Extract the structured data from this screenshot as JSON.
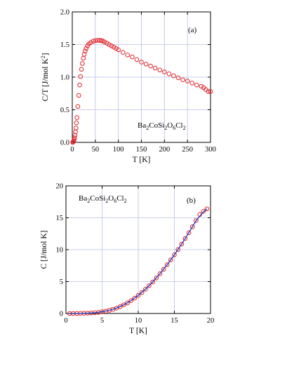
{
  "chart_data": [
    {
      "type": "scatter",
      "panel_tag": "(a)",
      "annotation": {
        "base": "Ba",
        "sub1": "2",
        "mid1": "CoSi",
        "sub2": "2",
        "mid2": "O",
        "sub3": "6",
        "mid3": "Cl",
        "sub4": "2"
      },
      "xlabel": "T [K]",
      "ylabel": {
        "main": "C/T [J/mol K",
        "sup": "2",
        "close": "]"
      },
      "xlim": [
        0,
        300
      ],
      "ylim": [
        0,
        2.0
      ],
      "xticks": [
        0,
        50,
        100,
        150,
        200,
        250,
        300
      ],
      "yticks": [
        0.0,
        0.5,
        1.0,
        1.5,
        2.0
      ],
      "ytick_labels": [
        "0.0",
        "0.5",
        "1.0",
        "1.5",
        "2.0"
      ],
      "grid": true,
      "colors": {
        "marker": "#e0242a",
        "grid": "#b9bfe6"
      },
      "series": [
        {
          "marker": "open-circle",
          "x": [
            1,
            2,
            3,
            4,
            5,
            6,
            7,
            8,
            9,
            10,
            12,
            14,
            16,
            18,
            20,
            22,
            24,
            26,
            28,
            30,
            33,
            36,
            40,
            45,
            50,
            55,
            60,
            63,
            66,
            70,
            75,
            80,
            85,
            90,
            95,
            100,
            110,
            120,
            130,
            140,
            150,
            160,
            170,
            180,
            190,
            200,
            210,
            220,
            230,
            240,
            250,
            260,
            270,
            280,
            285,
            290,
            295,
            300
          ],
          "y": [
            0.0,
            0.01,
            0.02,
            0.04,
            0.07,
            0.11,
            0.16,
            0.22,
            0.3,
            0.38,
            0.55,
            0.72,
            0.88,
            1.01,
            1.12,
            1.21,
            1.29,
            1.35,
            1.4,
            1.44,
            1.48,
            1.51,
            1.53,
            1.55,
            1.56,
            1.565,
            1.565,
            1.56,
            1.555,
            1.54,
            1.52,
            1.5,
            1.48,
            1.46,
            1.44,
            1.42,
            1.38,
            1.34,
            1.31,
            1.27,
            1.23,
            1.2,
            1.17,
            1.14,
            1.11,
            1.08,
            1.05,
            1.02,
            0.99,
            0.96,
            0.94,
            0.91,
            0.88,
            0.86,
            0.84,
            0.81,
            0.78,
            0.78
          ]
        }
      ]
    },
    {
      "type": "scatter",
      "panel_tag": "(b)",
      "annotation": {
        "base": "Ba",
        "sub1": "2",
        "mid1": "CoSi",
        "sub2": "2",
        "mid2": "O",
        "sub3": "6",
        "mid3": "Cl",
        "sub4": "2"
      },
      "xlabel": "T [K]",
      "ylabel": {
        "main": "C [J/mol K]",
        "sup": "",
        "close": ""
      },
      "xlim": [
        0,
        20
      ],
      "ylim": [
        0,
        20
      ],
      "xticks": [
        0,
        5,
        10,
        15,
        20
      ],
      "yticks": [
        0,
        5,
        10,
        15,
        20
      ],
      "ytick_labels": [
        "0",
        "5",
        "10",
        "15",
        "20"
      ],
      "grid": true,
      "colors": {
        "marker": "#e0242a",
        "fit": "#2f3fb8",
        "grid": "#b9bfe6"
      },
      "series": [
        {
          "marker": "open-circle",
          "x": [
            0.5,
            1,
            1.5,
            2,
            2.5,
            3,
            3.5,
            4,
            4.5,
            5,
            5.5,
            6,
            6.5,
            7,
            7.5,
            8,
            8.5,
            9,
            9.5,
            10,
            10.5,
            11,
            11.5,
            12,
            12.5,
            13,
            13.5,
            14,
            14.5,
            15,
            15.5,
            16,
            16.5,
            17,
            17.5,
            18,
            18.5,
            19,
            19.5
          ],
          "y": [
            0,
            0,
            0.01,
            0.02,
            0.03,
            0.05,
            0.08,
            0.12,
            0.18,
            0.26,
            0.36,
            0.49,
            0.65,
            0.85,
            1.08,
            1.35,
            1.66,
            2.01,
            2.4,
            2.83,
            3.3,
            3.81,
            4.36,
            4.95,
            5.57,
            6.23,
            6.92,
            7.65,
            8.41,
            9.2,
            10.02,
            10.87,
            11.75,
            12.66,
            13.59,
            14.55,
            15.5,
            16.0,
            16.4
          ]
        },
        {
          "marker": "line",
          "x": [
            0.5,
            1,
            2,
            3,
            4,
            5,
            6,
            7,
            8,
            9,
            10,
            11,
            12,
            13,
            14,
            15,
            16,
            17,
            18,
            19,
            19.5
          ],
          "y": [
            0,
            0,
            0.02,
            0.05,
            0.12,
            0.26,
            0.49,
            0.85,
            1.35,
            2.01,
            2.83,
            3.81,
            4.95,
            6.23,
            7.65,
            9.2,
            10.87,
            12.66,
            14.55,
            15.9,
            16.4
          ]
        }
      ]
    }
  ]
}
